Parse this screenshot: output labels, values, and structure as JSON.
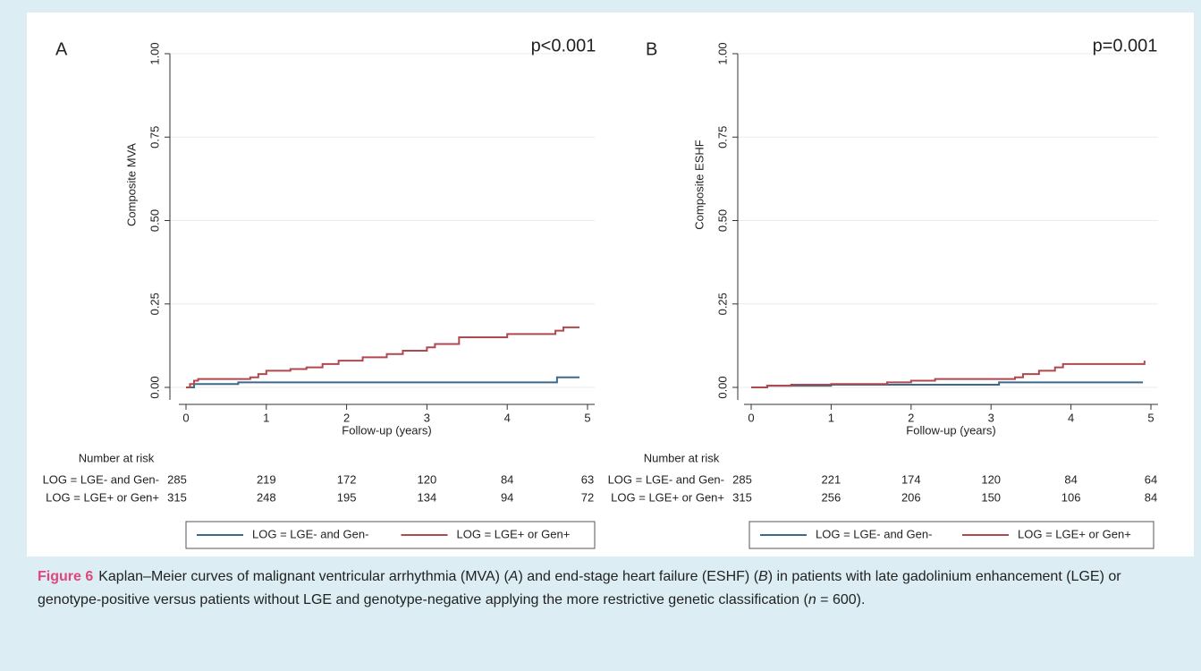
{
  "chart_data": [
    {
      "type": "line",
      "step": true,
      "panel_label": "A",
      "annotation": "p<0.001",
      "ylabel": "Composite MVA",
      "xlabel": "Follow-up (years)",
      "xlim": [
        0,
        5
      ],
      "xticks": [
        0,
        1,
        2,
        3,
        4,
        5
      ],
      "ylim": [
        0,
        1
      ],
      "yticks": [
        {
          "value": 0,
          "label": "0.00"
        },
        {
          "value": 0.25,
          "label": "0.25"
        },
        {
          "value": 0.5,
          "label": "0.50"
        },
        {
          "value": 0.75,
          "label": "0.75"
        },
        {
          "value": 1,
          "label": "1.00"
        }
      ],
      "grid": true,
      "series": [
        {
          "name": "LOG = LGE- and Gen-",
          "color": "#3d6a8c",
          "x": [
            0,
            0.1,
            0.65,
            4.62,
            4.9
          ],
          "values": [
            0,
            0.01,
            0.015,
            0.03,
            0.03
          ]
        },
        {
          "name": "LOG = LGE+ or Gen+",
          "color": "#b0484f",
          "x": [
            0,
            0.05,
            0.1,
            0.15,
            0.8,
            0.9,
            1.0,
            1.3,
            1.5,
            1.7,
            1.9,
            2.2,
            2.5,
            2.7,
            3.0,
            3.1,
            3.4,
            4.0,
            4.6,
            4.7,
            4.9
          ],
          "values": [
            0,
            0.01,
            0.02,
            0.025,
            0.03,
            0.04,
            0.05,
            0.055,
            0.06,
            0.07,
            0.08,
            0.09,
            0.1,
            0.11,
            0.12,
            0.13,
            0.15,
            0.16,
            0.17,
            0.18,
            0.18
          ]
        }
      ],
      "risk_table": {
        "title": "Number at risk",
        "rows": [
          {
            "name": "LOG = LGE- and Gen-",
            "values": [
              285,
              219,
              172,
              120,
              84,
              63
            ]
          },
          {
            "name": "LOG = LGE+ or Gen+",
            "values": [
              315,
              248,
              195,
              134,
              94,
              72
            ]
          }
        ]
      }
    },
    {
      "type": "line",
      "step": true,
      "panel_label": "B",
      "annotation": "p=0.001",
      "ylabel": "Composite ESHF",
      "xlabel": "Follow-up (years)",
      "xlim": [
        0,
        5
      ],
      "xticks": [
        0,
        1,
        2,
        3,
        4,
        5
      ],
      "ylim": [
        0,
        1
      ],
      "yticks": [
        {
          "value": 0,
          "label": "0.00"
        },
        {
          "value": 0.25,
          "label": "0.25"
        },
        {
          "value": 0.5,
          "label": "0.50"
        },
        {
          "value": 0.75,
          "label": "0.75"
        },
        {
          "value": 1,
          "label": "1.00"
        }
      ],
      "grid": true,
      "series": [
        {
          "name": "LOG = LGE- and Gen-",
          "color": "#3d6a8c",
          "x": [
            0,
            0.2,
            1.0,
            3.1,
            4.9
          ],
          "values": [
            0,
            0.005,
            0.008,
            0.015,
            0.015
          ]
        },
        {
          "name": "LOG = LGE+ or Gen+",
          "color": "#b0484f",
          "x": [
            0,
            0.2,
            0.5,
            1.0,
            1.7,
            2.0,
            2.3,
            3.3,
            3.4,
            3.6,
            3.8,
            3.9,
            4.9,
            4.92
          ],
          "values": [
            0,
            0.005,
            0.008,
            0.01,
            0.015,
            0.02,
            0.025,
            0.03,
            0.04,
            0.05,
            0.06,
            0.07,
            0.07,
            0.08
          ]
        }
      ],
      "risk_table": {
        "title": "Number at risk",
        "rows": [
          {
            "name": "LOG = LGE- and Gen-",
            "values": [
              285,
              221,
              174,
              120,
              84,
              64
            ]
          },
          {
            "name": "LOG = LGE+ or Gen+",
            "values": [
              315,
              256,
              206,
              150,
              106,
              84
            ]
          }
        ]
      }
    }
  ],
  "caption": {
    "label": "Figure 6",
    "segments": [
      {
        "text": "Kaplan–Meier curves of malignant ventricular arrhythmia (MVA) (",
        "italic": false
      },
      {
        "text": "A",
        "italic": true
      },
      {
        "text": ") and end-stage heart failure (ESHF) (",
        "italic": false
      },
      {
        "text": "B",
        "italic": true
      },
      {
        "text": ") in patients with late gadolinium enhancement (LGE) or genotype-positive versus patients without LGE and genotype-negative applying the more restrictive genetic classification (",
        "italic": false
      },
      {
        "text": "n",
        "italic": true
      },
      {
        "text": " = 600).",
        "italic": false
      }
    ]
  }
}
